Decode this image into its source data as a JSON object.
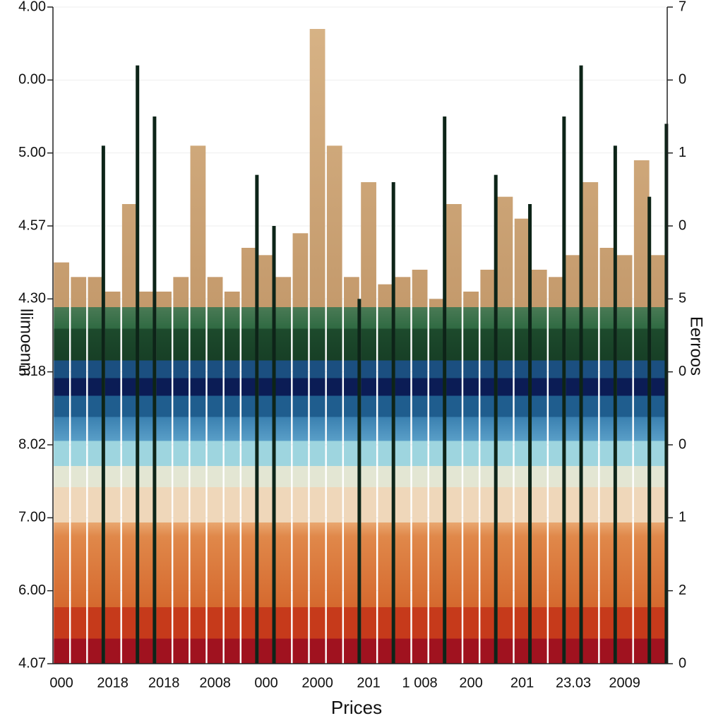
{
  "chart_data": {
    "type": "bar",
    "x_label": "Prices",
    "y_label": "llimoenm",
    "y2_label": "Eerroos",
    "categories": [
      "000",
      null,
      null,
      "2018",
      null,
      null,
      "2018",
      null,
      null,
      "2008",
      null,
      null,
      "000",
      null,
      null,
      "2000",
      null,
      null,
      "201",
      null,
      null,
      "1 008",
      null,
      null,
      "200",
      null,
      null,
      "201",
      null,
      null,
      "23.03",
      null,
      null,
      "2009",
      null,
      null
    ],
    "series": [
      {
        "color": "url(#bands)",
        "values": [
          5.5,
          5.3,
          5.3,
          5.1,
          6.3,
          5.1,
          5.1,
          5.3,
          7.1,
          5.3,
          5.1,
          5.7,
          5.6,
          5.3,
          5.9,
          8.7,
          7.1,
          5.3,
          6.6,
          5.2,
          5.3,
          5.4,
          5.0,
          6.3,
          5.1,
          5.4,
          6.4,
          6.1,
          5.4,
          5.3,
          5.6,
          6.6,
          5.7,
          5.6,
          6.9,
          5.6
        ]
      },
      {
        "color": "#0d2418",
        "values": [
          null,
          null,
          7.1,
          null,
          8.2,
          7.5,
          null,
          null,
          null,
          null,
          null,
          6.7,
          6.0,
          null,
          null,
          null,
          null,
          5.0,
          null,
          6.6,
          null,
          null,
          7.5,
          null,
          null,
          6.7,
          null,
          6.3,
          null,
          7.5,
          8.2,
          null,
          7.1,
          null,
          6.4,
          7.4
        ]
      }
    ],
    "ylim": [
      0,
      9
    ],
    "yticks": [
      {
        "value": 0,
        "label": "4.07"
      },
      {
        "value": 1,
        "label": "6.00"
      },
      {
        "value": 2,
        "label": "7.00"
      },
      {
        "value": 3,
        "label": "8.02"
      },
      {
        "value": 4,
        "label": "5.18"
      },
      {
        "value": 5,
        "label": "4.30"
      },
      {
        "value": 6,
        "label": "4.57"
      },
      {
        "value": 7,
        "label": "5.00"
      },
      {
        "value": 8,
        "label": "0.00"
      },
      {
        "value": 9,
        "label": "4.00"
      }
    ],
    "y2lim": [
      0,
      9
    ],
    "y2ticks": [
      {
        "value": 0,
        "label": "0"
      },
      {
        "value": 1,
        "label": "2"
      },
      {
        "value": 2,
        "label": "1"
      },
      {
        "value": 3,
        "label": "0"
      },
      {
        "value": 4,
        "label": "0"
      },
      {
        "value": 5,
        "label": "5"
      },
      {
        "value": 6,
        "label": "0"
      },
      {
        "value": 7,
        "label": "1"
      },
      {
        "value": 8,
        "label": "0"
      },
      {
        "value": 9,
        "label": "7"
      }
    ],
    "grid": true
  }
}
